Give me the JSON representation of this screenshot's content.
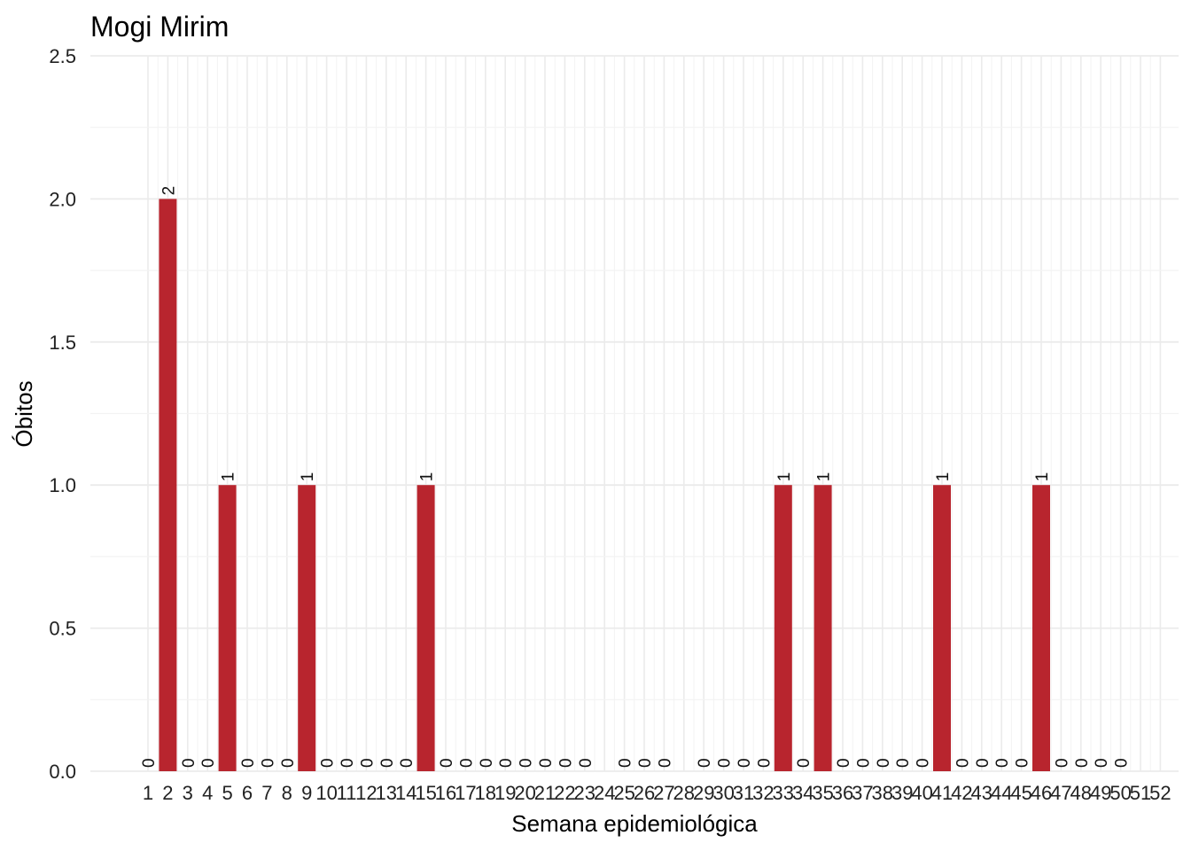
{
  "chart_data": {
    "type": "bar",
    "title": "Mogi Mirim",
    "xlabel": "Semana epidemiológica",
    "ylabel": "Óbitos",
    "ylim": [
      0,
      2.5
    ],
    "yticks": [
      "0.0",
      "0.5",
      "1.0",
      "1.5",
      "2.0",
      "2.5"
    ],
    "grid": true,
    "bar_color": "#B8252E",
    "categories": [
      "1",
      "2",
      "3",
      "4",
      "5",
      "6",
      "7",
      "8",
      "9",
      "10",
      "11",
      "12",
      "13",
      "14",
      "15",
      "16",
      "17",
      "18",
      "19",
      "20",
      "21",
      "22",
      "23",
      "24",
      "25",
      "26",
      "27",
      "28",
      "29",
      "30",
      "31",
      "32",
      "33",
      "34",
      "35",
      "36",
      "37",
      "38",
      "39",
      "40",
      "41",
      "42",
      "43",
      "44",
      "45",
      "46",
      "47",
      "48",
      "49",
      "50",
      "51",
      "52"
    ],
    "values": [
      0,
      2,
      0,
      0,
      1,
      0,
      0,
      0,
      1,
      0,
      0,
      0,
      0,
      0,
      1,
      0,
      0,
      0,
      0,
      0,
      0,
      0,
      0,
      null,
      0,
      0,
      0,
      null,
      0,
      0,
      0,
      0,
      1,
      0,
      1,
      0,
      0,
      0,
      0,
      0,
      1,
      0,
      0,
      0,
      0,
      1,
      0,
      0,
      0,
      0,
      null,
      null
    ],
    "data_labels": [
      "0",
      "2",
      "0",
      "0",
      "1",
      "0",
      "0",
      "0",
      "1",
      "0",
      "0",
      "0",
      "0",
      "0",
      "1",
      "0",
      "0",
      "0",
      "0",
      "0",
      "0",
      "0",
      "0",
      "",
      "0",
      "0",
      "0",
      "",
      "0",
      "0",
      "0",
      "0",
      "1",
      "0",
      "1",
      "0",
      "0",
      "0",
      "0",
      "0",
      "1",
      "0",
      "0",
      "0",
      "0",
      "1",
      "0",
      "0",
      "0",
      "0",
      "",
      ""
    ]
  }
}
